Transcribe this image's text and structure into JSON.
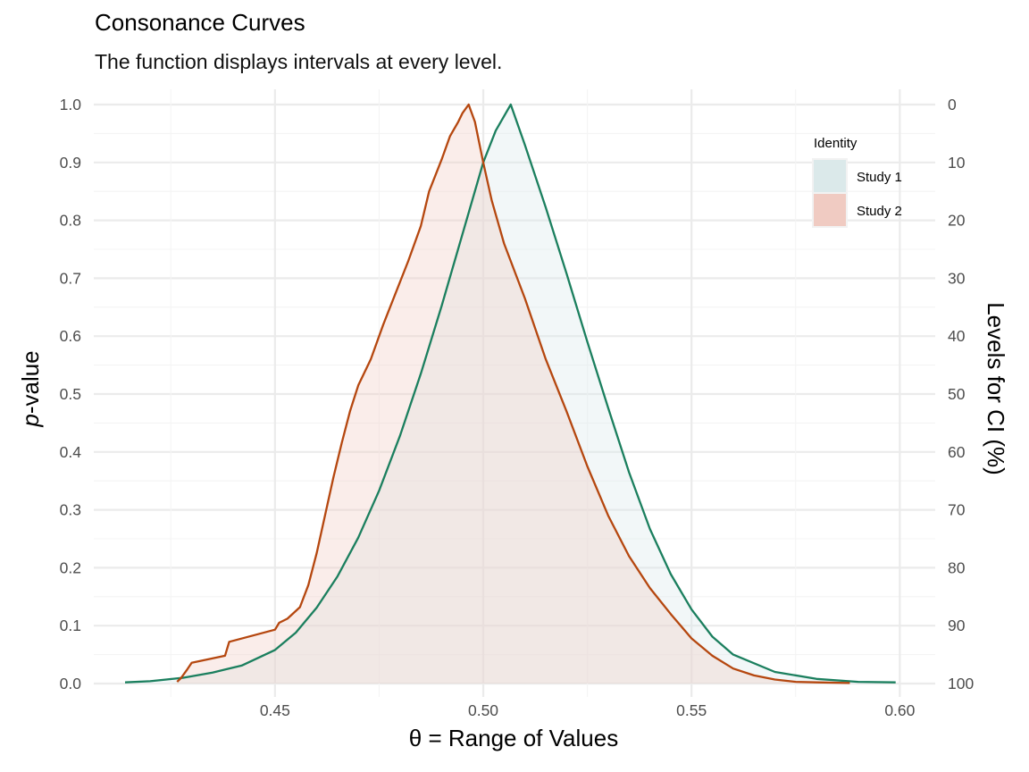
{
  "chart_data": {
    "type": "area",
    "title": "Consonance Curves",
    "subtitle": "The function displays intervals at every level.",
    "xlabel_prefix": "θ = ",
    "xlabel": "Range of Values",
    "ylabel_italic": "p",
    "ylabel_rest": "-value",
    "y2label": "Levels for CI (%)",
    "xlim": [
      0.408,
      0.607
    ],
    "ylim": [
      0,
      1
    ],
    "x_ticks": [
      0.45,
      0.5,
      0.55,
      0.6
    ],
    "x_tick_labels": [
      "0.45",
      "0.50",
      "0.55",
      "0.60"
    ],
    "y_ticks": [
      0,
      0.1,
      0.2,
      0.3,
      0.4,
      0.5,
      0.6,
      0.7,
      0.8,
      0.9,
      1.0
    ],
    "y_tick_labels": [
      "0.0",
      "0.1",
      "0.2",
      "0.3",
      "0.4",
      "0.5",
      "0.6",
      "0.7",
      "0.8",
      "0.9",
      "1.0"
    ],
    "y2_tick_labels": [
      "100",
      "90",
      "80",
      "70",
      "60",
      "50",
      "40",
      "30",
      "20",
      "10",
      "0"
    ],
    "grid": true,
    "legend": {
      "title": "Identity",
      "position": "top-right",
      "entries": [
        "Study 1",
        "Study 2"
      ]
    },
    "series": [
      {
        "name": "Study 1",
        "line_color": "#1b7f5e",
        "fill_color": "#dbe9ea",
        "x": [
          0.414,
          0.42,
          0.428,
          0.435,
          0.442,
          0.45,
          0.455,
          0.46,
          0.465,
          0.47,
          0.475,
          0.48,
          0.485,
          0.49,
          0.495,
          0.5,
          0.503,
          0.5066,
          0.51,
          0.515,
          0.52,
          0.525,
          0.53,
          0.535,
          0.54,
          0.545,
          0.55,
          0.555,
          0.56,
          0.57,
          0.58,
          0.59,
          0.599
        ],
        "y": [
          0.002,
          0.004,
          0.01,
          0.019,
          0.031,
          0.058,
          0.088,
          0.131,
          0.185,
          0.252,
          0.333,
          0.428,
          0.535,
          0.652,
          0.776,
          0.9,
          0.955,
          1.0,
          0.93,
          0.822,
          0.708,
          0.59,
          0.476,
          0.365,
          0.267,
          0.189,
          0.128,
          0.081,
          0.05,
          0.02,
          0.008,
          0.003,
          0.002
        ]
      },
      {
        "name": "Study 2",
        "line_color": "#b5470f",
        "fill_color": "#f0cbc2",
        "x": [
          0.4265,
          0.4275,
          0.429,
          0.43,
          0.438,
          0.439,
          0.45,
          0.451,
          0.453,
          0.456,
          0.458,
          0.46,
          0.462,
          0.464,
          0.466,
          0.468,
          0.47,
          0.473,
          0.476,
          0.479,
          0.482,
          0.485,
          0.487,
          0.49,
          0.492,
          0.494,
          0.495,
          0.4965,
          0.497,
          0.498,
          0.5,
          0.502,
          0.505,
          0.51,
          0.515,
          0.52,
          0.525,
          0.53,
          0.535,
          0.54,
          0.545,
          0.55,
          0.555,
          0.56,
          0.565,
          0.57,
          0.575,
          0.58,
          0.588
        ],
        "y": [
          0.003,
          0.01,
          0.025,
          0.036,
          0.048,
          0.072,
          0.093,
          0.105,
          0.112,
          0.132,
          0.17,
          0.225,
          0.29,
          0.355,
          0.415,
          0.47,
          0.515,
          0.56,
          0.62,
          0.675,
          0.73,
          0.79,
          0.85,
          0.905,
          0.945,
          0.97,
          0.985,
          1.0,
          0.99,
          0.97,
          0.9,
          0.835,
          0.76,
          0.665,
          0.56,
          0.47,
          0.375,
          0.29,
          0.22,
          0.165,
          0.12,
          0.078,
          0.048,
          0.026,
          0.014,
          0.007,
          0.003,
          0.002,
          0.001
        ]
      }
    ]
  }
}
